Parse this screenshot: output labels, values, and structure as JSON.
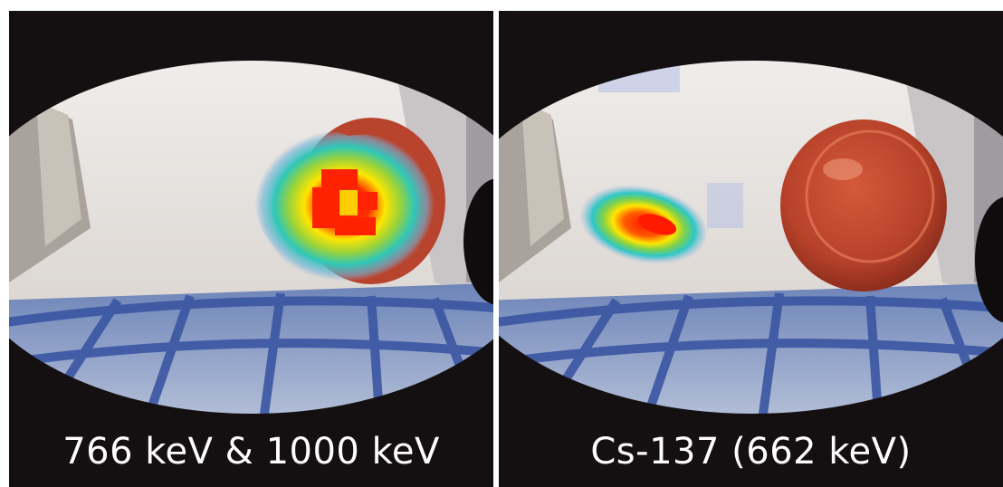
{
  "panels": [
    {
      "caption": "766 keV & 1000 keV"
    },
    {
      "caption": "Cs-137 (662 keV)"
    }
  ],
  "colors": {
    "background": "#141012",
    "divider": "#ffffff",
    "caption_text": "#ffffff",
    "wall": "#dcd8d4",
    "floor_grid": "#3f5fa8",
    "plate": "#c0452a",
    "heat_hot": "#ff1a00",
    "heat_mid": "#ffe000",
    "heat_cool": "#28c8c8"
  }
}
